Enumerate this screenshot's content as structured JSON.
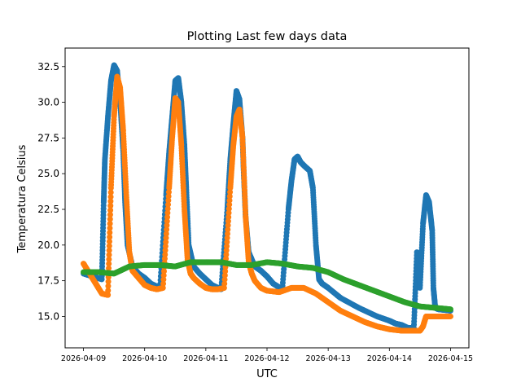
{
  "chart_data": {
    "type": "scatter",
    "title": "Plotting Last few days data",
    "xlabel": "UTC",
    "ylabel": "Temperatura Celsius",
    "x_unit": "days since 2026-04-09 00:00 UTC",
    "xlim": [
      -0.3,
      6.3
    ],
    "ylim": [
      12.8,
      33.8
    ],
    "xticks": [
      {
        "value": 0,
        "label": "2026-04-09"
      },
      {
        "value": 1,
        "label": "2026-04-10"
      },
      {
        "value": 2,
        "label": "2026-04-11"
      },
      {
        "value": 3,
        "label": "2026-04-12"
      },
      {
        "value": 4,
        "label": "2026-04-13"
      },
      {
        "value": 5,
        "label": "2026-04-14"
      },
      {
        "value": 6,
        "label": "2026-04-15"
      }
    ],
    "yticks": [
      {
        "value": 15.0,
        "label": "15.0"
      },
      {
        "value": 17.5,
        "label": "17.5"
      },
      {
        "value": 20.0,
        "label": "20.0"
      },
      {
        "value": 22.5,
        "label": "22.5"
      },
      {
        "value": 25.0,
        "label": "25.0"
      },
      {
        "value": 27.5,
        "label": "27.5"
      },
      {
        "value": 30.0,
        "label": "30.0"
      },
      {
        "value": 32.5,
        "label": "32.5"
      }
    ],
    "grid": false,
    "legend": "none",
    "series": [
      {
        "name": "series-1",
        "color": "#1f77b4",
        "x": [
          0.0,
          0.15,
          0.3,
          0.33,
          0.35,
          0.4,
          0.45,
          0.5,
          0.55,
          0.6,
          0.65,
          0.68,
          0.72,
          0.8,
          0.9,
          1.0,
          1.1,
          1.25,
          1.35,
          1.4,
          1.45,
          1.5,
          1.55,
          1.6,
          1.65,
          1.68,
          1.72,
          1.8,
          1.9,
          2.0,
          2.1,
          2.25,
          2.35,
          2.4,
          2.45,
          2.5,
          2.55,
          2.6,
          2.62,
          2.65,
          2.7,
          2.8,
          2.9,
          3.0,
          3.1,
          3.25,
          3.35,
          3.4,
          3.45,
          3.5,
          3.55,
          3.62,
          3.7,
          3.75,
          3.8,
          3.85,
          3.9,
          4.0,
          4.2,
          4.5,
          4.8,
          5.0,
          5.1,
          5.2,
          5.3,
          5.4,
          5.45,
          5.5,
          5.55,
          5.6,
          5.65,
          5.7,
          5.72,
          5.75,
          5.8,
          6.0
        ],
        "y": [
          18.0,
          17.8,
          17.6,
          23.0,
          26.0,
          29.0,
          31.5,
          32.6,
          32.2,
          30.0,
          26.5,
          23.0,
          20.0,
          18.5,
          18.0,
          17.7,
          17.3,
          17.0,
          23.5,
          26.5,
          29.0,
          31.5,
          31.7,
          30.0,
          27.0,
          24.0,
          20.0,
          18.5,
          18.0,
          17.6,
          17.2,
          16.9,
          22.5,
          26.0,
          28.5,
          30.8,
          30.2,
          27.5,
          25.0,
          22.0,
          19.5,
          18.5,
          18.2,
          17.8,
          17.3,
          16.9,
          22.5,
          24.5,
          26.0,
          26.2,
          25.8,
          25.5,
          25.2,
          24.0,
          20.0,
          17.6,
          17.3,
          17.0,
          16.3,
          15.6,
          15.0,
          14.7,
          14.5,
          14.4,
          14.2,
          14.2,
          19.5,
          17.0,
          21.5,
          23.5,
          23.0,
          21.0,
          17.0,
          15.6,
          15.5,
          15.4
        ]
      },
      {
        "name": "series-2",
        "color": "#ff7f0e",
        "x": [
          0.0,
          0.1,
          0.2,
          0.3,
          0.4,
          0.45,
          0.5,
          0.55,
          0.6,
          0.65,
          0.7,
          0.75,
          0.8,
          0.9,
          1.0,
          1.1,
          1.2,
          1.3,
          1.4,
          1.45,
          1.5,
          1.55,
          1.6,
          1.65,
          1.7,
          1.75,
          1.8,
          1.9,
          2.0,
          2.1,
          2.2,
          2.3,
          2.4,
          2.45,
          2.5,
          2.55,
          2.6,
          2.65,
          2.7,
          2.75,
          2.8,
          2.9,
          3.0,
          3.2,
          3.4,
          3.6,
          3.8,
          4.0,
          4.2,
          4.4,
          4.6,
          4.8,
          5.0,
          5.2,
          5.4,
          5.5,
          5.55,
          5.6,
          5.7,
          5.8,
          6.0
        ],
        "y": [
          18.7,
          18.0,
          17.3,
          16.6,
          16.5,
          24.0,
          29.0,
          31.8,
          31.0,
          28.0,
          23.5,
          19.5,
          18.2,
          17.7,
          17.2,
          17.0,
          16.9,
          17.0,
          24.0,
          27.5,
          30.3,
          30.0,
          27.0,
          22.5,
          19.0,
          18.0,
          17.7,
          17.3,
          17.0,
          16.9,
          16.9,
          17.0,
          24.0,
          27.0,
          29.0,
          29.5,
          27.5,
          22.0,
          18.8,
          18.0,
          17.5,
          17.0,
          16.8,
          16.7,
          17.0,
          17.0,
          16.6,
          16.0,
          15.4,
          15.0,
          14.6,
          14.3,
          14.1,
          14.0,
          14.0,
          14.0,
          14.3,
          15.0,
          15.0,
          15.0,
          15.0
        ]
      },
      {
        "name": "series-3",
        "color": "#2ca02c",
        "x": [
          0.0,
          0.25,
          0.5,
          0.75,
          1.0,
          1.25,
          1.5,
          1.75,
          2.0,
          2.25,
          2.5,
          2.75,
          3.0,
          3.25,
          3.5,
          3.75,
          4.0,
          4.25,
          4.5,
          4.75,
          5.0,
          5.25,
          5.5,
          5.75,
          6.0
        ],
        "y": [
          18.1,
          18.1,
          18.0,
          18.5,
          18.6,
          18.6,
          18.5,
          18.8,
          18.8,
          18.8,
          18.6,
          18.6,
          18.8,
          18.7,
          18.5,
          18.4,
          18.1,
          17.6,
          17.2,
          16.8,
          16.4,
          16.0,
          15.7,
          15.6,
          15.5
        ]
      }
    ]
  }
}
